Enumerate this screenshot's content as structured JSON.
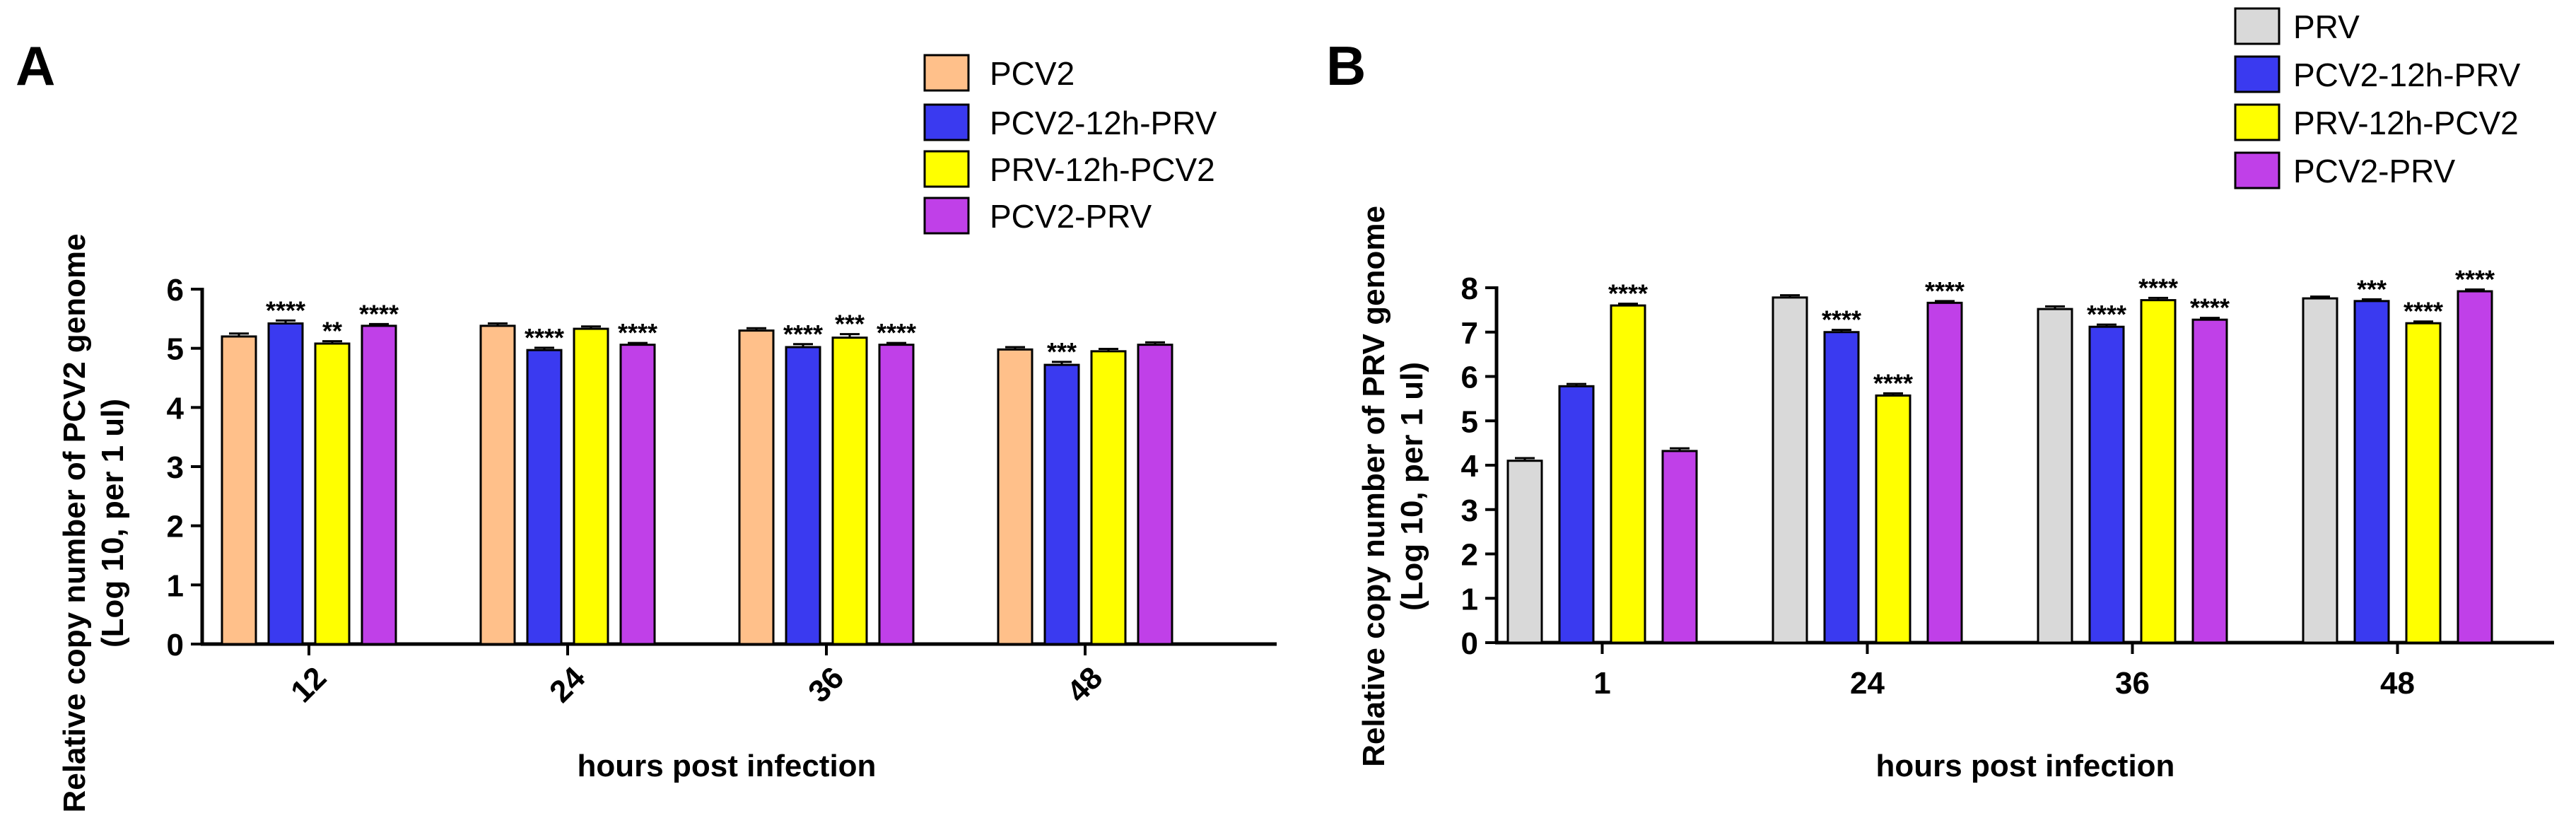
{
  "chart_data": [
    {
      "panel": "A",
      "type": "bar",
      "xlabel": "hours post infection",
      "ylabel_line1": "Relative copy number of PCV2 genome",
      "ylabel_line2": "(Log 10,  per 1 ul)",
      "ylim": [
        0,
        6
      ],
      "yticks": [
        "0",
        "1",
        "2",
        "3",
        "4",
        "5",
        "6"
      ],
      "categories": [
        "12",
        "24",
        "36",
        "48"
      ],
      "legend_position": "top-right",
      "series": [
        {
          "name": "PCV2",
          "color": "#FFC08A",
          "values": [
            5.2,
            5.38,
            5.3,
            4.98
          ],
          "errors": [
            0.05,
            0.04,
            0.04,
            0.04
          ],
          "sig": [
            "",
            "",
            "",
            ""
          ]
        },
        {
          "name": "PCV2-12h-PRV",
          "color": "#3A3AF0",
          "values": [
            5.42,
            4.97,
            5.02,
            4.72
          ],
          "errors": [
            0.05,
            0.04,
            0.05,
            0.05
          ],
          "sig": [
            "****",
            "****",
            "****",
            "***"
          ]
        },
        {
          "name": "PRV-12h-PCV2",
          "color": "#FFFF00",
          "values": [
            5.08,
            5.33,
            5.18,
            4.95
          ],
          "errors": [
            0.04,
            0.04,
            0.06,
            0.04
          ],
          "sig": [
            "**",
            "",
            "***",
            ""
          ]
        },
        {
          "name": "PCV2-PRV",
          "color": "#C040E8",
          "values": [
            5.38,
            5.06,
            5.06,
            5.06
          ],
          "errors": [
            0.03,
            0.03,
            0.03,
            0.04
          ],
          "sig": [
            "****",
            "****",
            "****",
            ""
          ]
        }
      ]
    },
    {
      "panel": "B",
      "type": "bar",
      "xlabel": "hours post infection",
      "ylabel_line1": "Relative copy number of PRV genome",
      "ylabel_line2": "(Log 10, per 1 ul)",
      "ylim": [
        0,
        8
      ],
      "yticks": [
        "0",
        "1",
        "2",
        "3",
        "4",
        "5",
        "6",
        "7",
        "8"
      ],
      "categories": [
        "1",
        "24",
        "36",
        "48"
      ],
      "legend_position": "top-right",
      "series": [
        {
          "name": "PRV",
          "color": "#D9D9D9",
          "values": [
            4.1,
            7.78,
            7.52,
            7.76
          ],
          "errors": [
            0.06,
            0.05,
            0.06,
            0.04
          ],
          "sig": [
            "",
            "",
            "",
            ""
          ]
        },
        {
          "name": "PCV2-12h-PRV",
          "color": "#3A3AF0",
          "values": [
            5.78,
            7.0,
            7.12,
            7.7
          ],
          "errors": [
            0.05,
            0.05,
            0.05,
            0.04
          ],
          "sig": [
            "",
            "****",
            "****",
            "***"
          ]
        },
        {
          "name": "PRV-12h-PCV2",
          "color": "#FFFF00",
          "values": [
            7.6,
            5.57,
            7.72,
            7.2
          ],
          "errors": [
            0.04,
            0.05,
            0.05,
            0.04
          ],
          "sig": [
            "****",
            "****",
            "****",
            "****"
          ]
        },
        {
          "name": "PCV2-PRV",
          "color": "#C040E8",
          "values": [
            4.32,
            7.66,
            7.28,
            7.92
          ],
          "errors": [
            0.06,
            0.04,
            0.04,
            0.04
          ],
          "sig": [
            "",
            "****",
            "****",
            "****"
          ]
        }
      ]
    }
  ]
}
